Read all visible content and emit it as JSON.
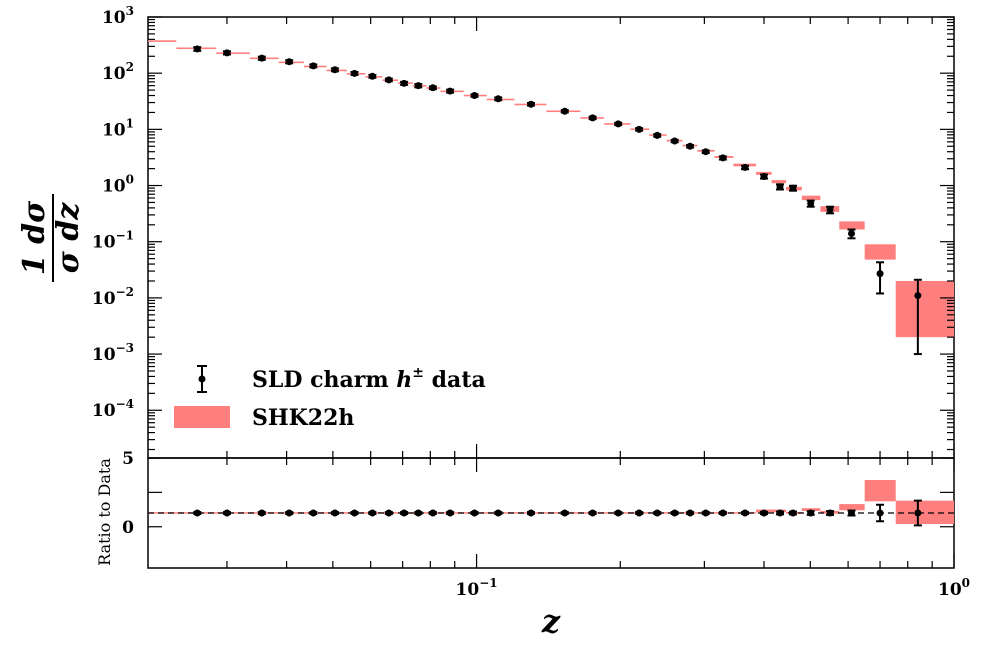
{
  "chart_data": {
    "type": "scatter",
    "xlabel": "z",
    "ylabel_top": {
      "numerator": "1 dσ",
      "denominator": "σ dz"
    },
    "ylabel_bottom": "Ratio to Data",
    "x_scale": "log",
    "xlim": [
      0.0205,
      1.0
    ],
    "x_tick_labels": [
      {
        "base": "10",
        "exp": "−1",
        "value": 0.1
      },
      {
        "base": "10",
        "exp": "0",
        "value": 1.0
      }
    ],
    "top_panel": {
      "y_scale": "log",
      "ylim_exp": [
        -4.85,
        3
      ],
      "y_tick_exponents": [
        -4,
        -3,
        -2,
        -1,
        0,
        1,
        2,
        3
      ],
      "y_tick_labels": [
        {
          "base": "10",
          "exp": "−4",
          "e": -4
        },
        {
          "base": "10",
          "exp": "−3",
          "e": -3
        },
        {
          "base": "10",
          "exp": "−2",
          "e": -2
        },
        {
          "base": "10",
          "exp": "−1",
          "e": -1
        },
        {
          "base": "10",
          "exp": "0",
          "e": 0
        },
        {
          "base": "10",
          "exp": "1",
          "e": 1
        },
        {
          "base": "10",
          "exp": "2",
          "e": 2
        },
        {
          "base": "10",
          "exp": "3",
          "e": 3
        }
      ],
      "data_series": {
        "name": "SLD charm h± data",
        "points": [
          {
            "x": 0.026,
            "y": 270,
            "ylo": 250,
            "yhi": 290
          },
          {
            "x": 0.03,
            "y": 230,
            "ylo": 215,
            "yhi": 245
          },
          {
            "x": 0.0355,
            "y": 185,
            "ylo": 173,
            "yhi": 197
          },
          {
            "x": 0.0405,
            "y": 160,
            "ylo": 150,
            "yhi": 170
          },
          {
            "x": 0.0455,
            "y": 135,
            "ylo": 127,
            "yhi": 143
          },
          {
            "x": 0.0505,
            "y": 115,
            "ylo": 108,
            "yhi": 122
          },
          {
            "x": 0.0555,
            "y": 99,
            "ylo": 93,
            "yhi": 105
          },
          {
            "x": 0.0605,
            "y": 88,
            "ylo": 83,
            "yhi": 93
          },
          {
            "x": 0.0655,
            "y": 76,
            "ylo": 72,
            "yhi": 80
          },
          {
            "x": 0.0705,
            "y": 66,
            "ylo": 62,
            "yhi": 70
          },
          {
            "x": 0.0755,
            "y": 60,
            "ylo": 56,
            "yhi": 64
          },
          {
            "x": 0.081,
            "y": 55,
            "ylo": 52,
            "yhi": 58
          },
          {
            "x": 0.088,
            "y": 48,
            "ylo": 45,
            "yhi": 51
          },
          {
            "x": 0.099,
            "y": 40,
            "ylo": 38,
            "yhi": 42
          },
          {
            "x": 0.111,
            "y": 35,
            "ylo": 33,
            "yhi": 37
          },
          {
            "x": 0.13,
            "y": 28,
            "ylo": 26.5,
            "yhi": 29.5
          },
          {
            "x": 0.153,
            "y": 21,
            "ylo": 20,
            "yhi": 22
          },
          {
            "x": 0.175,
            "y": 16,
            "ylo": 15.2,
            "yhi": 16.8
          },
          {
            "x": 0.198,
            "y": 12.5,
            "ylo": 11.9,
            "yhi": 13.1
          },
          {
            "x": 0.219,
            "y": 10,
            "ylo": 9.5,
            "yhi": 10.5
          },
          {
            "x": 0.239,
            "y": 7.8,
            "ylo": 7.4,
            "yhi": 8.2
          },
          {
            "x": 0.26,
            "y": 6.2,
            "ylo": 5.9,
            "yhi": 6.5
          },
          {
            "x": 0.28,
            "y": 5.0,
            "ylo": 4.75,
            "yhi": 5.25
          },
          {
            "x": 0.302,
            "y": 4.0,
            "ylo": 3.8,
            "yhi": 4.2
          },
          {
            "x": 0.328,
            "y": 3.1,
            "ylo": 2.9,
            "yhi": 3.3
          },
          {
            "x": 0.365,
            "y": 2.1,
            "ylo": 1.95,
            "yhi": 2.25
          },
          {
            "x": 0.4,
            "y": 1.45,
            "ylo": 1.33,
            "yhi": 1.57
          },
          {
            "x": 0.432,
            "y": 0.95,
            "ylo": 0.85,
            "yhi": 1.05
          },
          {
            "x": 0.46,
            "y": 0.9,
            "ylo": 0.81,
            "yhi": 0.99
          },
          {
            "x": 0.501,
            "y": 0.48,
            "ylo": 0.42,
            "yhi": 0.54
          },
          {
            "x": 0.55,
            "y": 0.37,
            "ylo": 0.32,
            "yhi": 0.42
          },
          {
            "x": 0.61,
            "y": 0.14,
            "ylo": 0.115,
            "yhi": 0.165
          },
          {
            "x": 0.7,
            "y": 0.027,
            "ylo": 0.012,
            "yhi": 0.043
          },
          {
            "x": 0.84,
            "y": 0.011,
            "ylo": 0.001,
            "yhi": 0.021
          }
        ]
      },
      "theory_series": {
        "name": "SHK22h",
        "color": "#ff7f7f",
        "bins": [
          {
            "xlo": 0.0205,
            "xhi": 0.0235,
            "ylo": 360,
            "yhi": 385
          },
          {
            "xlo": 0.0235,
            "xhi": 0.0285,
            "ylo": 270,
            "yhi": 285
          },
          {
            "xlo": 0.0285,
            "xhi": 0.0335,
            "ylo": 222,
            "yhi": 232
          },
          {
            "xlo": 0.0335,
            "xhi": 0.0385,
            "ylo": 180,
            "yhi": 188
          },
          {
            "xlo": 0.0385,
            "xhi": 0.0435,
            "ylo": 152,
            "yhi": 160
          },
          {
            "xlo": 0.0435,
            "xhi": 0.0485,
            "ylo": 128,
            "yhi": 135
          },
          {
            "xlo": 0.0485,
            "xhi": 0.0535,
            "ylo": 109,
            "yhi": 115
          },
          {
            "xlo": 0.0535,
            "xhi": 0.0585,
            "ylo": 95,
            "yhi": 100
          },
          {
            "xlo": 0.0585,
            "xhi": 0.0635,
            "ylo": 84,
            "yhi": 88
          },
          {
            "xlo": 0.0635,
            "xhi": 0.0685,
            "ylo": 73,
            "yhi": 77
          },
          {
            "xlo": 0.0685,
            "xhi": 0.0735,
            "ylo": 65,
            "yhi": 68
          },
          {
            "xlo": 0.0735,
            "xhi": 0.0785,
            "ylo": 58,
            "yhi": 61
          },
          {
            "xlo": 0.0785,
            "xhi": 0.084,
            "ylo": 53,
            "yhi": 56
          },
          {
            "xlo": 0.084,
            "xhi": 0.094,
            "ylo": 46,
            "yhi": 49
          },
          {
            "xlo": 0.094,
            "xhi": 0.105,
            "ylo": 39,
            "yhi": 41
          },
          {
            "xlo": 0.105,
            "xhi": 0.12,
            "ylo": 33,
            "yhi": 35
          },
          {
            "xlo": 0.12,
            "xhi": 0.14,
            "ylo": 27,
            "yhi": 28.5
          },
          {
            "xlo": 0.14,
            "xhi": 0.165,
            "ylo": 20.5,
            "yhi": 21.5
          },
          {
            "xlo": 0.165,
            "xhi": 0.185,
            "ylo": 15.6,
            "yhi": 16.4
          },
          {
            "xlo": 0.185,
            "xhi": 0.21,
            "ylo": 12.2,
            "yhi": 12.8
          },
          {
            "xlo": 0.21,
            "xhi": 0.23,
            "ylo": 9.8,
            "yhi": 10.3
          },
          {
            "xlo": 0.23,
            "xhi": 0.25,
            "ylo": 7.7,
            "yhi": 8.1
          },
          {
            "xlo": 0.25,
            "xhi": 0.27,
            "ylo": 6.1,
            "yhi": 6.5
          },
          {
            "xlo": 0.27,
            "xhi": 0.29,
            "ylo": 5.0,
            "yhi": 5.3
          },
          {
            "xlo": 0.29,
            "xhi": 0.315,
            "ylo": 4.0,
            "yhi": 4.3
          },
          {
            "xlo": 0.315,
            "xhi": 0.345,
            "ylo": 3.1,
            "yhi": 3.35
          },
          {
            "xlo": 0.345,
            "xhi": 0.385,
            "ylo": 2.2,
            "yhi": 2.45
          },
          {
            "xlo": 0.385,
            "xhi": 0.415,
            "ylo": 1.55,
            "yhi": 1.75
          },
          {
            "xlo": 0.415,
            "xhi": 0.445,
            "ylo": 1.1,
            "yhi": 1.25
          },
          {
            "xlo": 0.445,
            "xhi": 0.48,
            "ylo": 0.82,
            "yhi": 0.95
          },
          {
            "xlo": 0.48,
            "xhi": 0.525,
            "ylo": 0.55,
            "yhi": 0.66
          },
          {
            "xlo": 0.525,
            "xhi": 0.575,
            "ylo": 0.34,
            "yhi": 0.43
          },
          {
            "xlo": 0.575,
            "xhi": 0.65,
            "ylo": 0.165,
            "yhi": 0.23
          },
          {
            "xlo": 0.65,
            "xhi": 0.755,
            "ylo": 0.048,
            "yhi": 0.09
          },
          {
            "xlo": 0.755,
            "xhi": 1.0,
            "ylo": 0.002,
            "yhi": 0.02
          }
        ]
      }
    },
    "bottom_panel": {
      "ylim": [
        -3,
        5
      ],
      "y_ticks": [
        0,
        2.5,
        5
      ],
      "y_tick_labels": [
        "0",
        "",
        "5"
      ],
      "reference_line": 1,
      "ratio_points": [
        {
          "x": 0.026,
          "y": 1,
          "err": 0.07
        },
        {
          "x": 0.03,
          "y": 1,
          "err": 0.07
        },
        {
          "x": 0.0355,
          "y": 1,
          "err": 0.07
        },
        {
          "x": 0.0405,
          "y": 1,
          "err": 0.07
        },
        {
          "x": 0.0455,
          "y": 1,
          "err": 0.07
        },
        {
          "x": 0.0505,
          "y": 1,
          "err": 0.07
        },
        {
          "x": 0.0555,
          "y": 1,
          "err": 0.07
        },
        {
          "x": 0.0605,
          "y": 1,
          "err": 0.07
        },
        {
          "x": 0.0655,
          "y": 1,
          "err": 0.07
        },
        {
          "x": 0.0705,
          "y": 1,
          "err": 0.07
        },
        {
          "x": 0.0755,
          "y": 1,
          "err": 0.07
        },
        {
          "x": 0.081,
          "y": 1,
          "err": 0.07
        },
        {
          "x": 0.088,
          "y": 1,
          "err": 0.07
        },
        {
          "x": 0.099,
          "y": 1,
          "err": 0.07
        },
        {
          "x": 0.111,
          "y": 1,
          "err": 0.07
        },
        {
          "x": 0.13,
          "y": 1,
          "err": 0.07
        },
        {
          "x": 0.153,
          "y": 1,
          "err": 0.07
        },
        {
          "x": 0.175,
          "y": 1,
          "err": 0.07
        },
        {
          "x": 0.198,
          "y": 1,
          "err": 0.07
        },
        {
          "x": 0.219,
          "y": 1,
          "err": 0.07
        },
        {
          "x": 0.239,
          "y": 1,
          "err": 0.07
        },
        {
          "x": 0.26,
          "y": 1,
          "err": 0.07
        },
        {
          "x": 0.28,
          "y": 1,
          "err": 0.07
        },
        {
          "x": 0.302,
          "y": 1,
          "err": 0.07
        },
        {
          "x": 0.328,
          "y": 1,
          "err": 0.07
        },
        {
          "x": 0.365,
          "y": 1,
          "err": 0.07
        },
        {
          "x": 0.4,
          "y": 1,
          "err": 0.08
        },
        {
          "x": 0.432,
          "y": 1,
          "err": 0.1
        },
        {
          "x": 0.46,
          "y": 1,
          "err": 0.1
        },
        {
          "x": 0.501,
          "y": 1,
          "err": 0.13
        },
        {
          "x": 0.55,
          "y": 1,
          "err": 0.14
        },
        {
          "x": 0.61,
          "y": 1,
          "err": 0.18
        },
        {
          "x": 0.7,
          "y": 1,
          "err": 0.6
        },
        {
          "x": 0.84,
          "y": 1,
          "err": 0.9
        }
      ],
      "ratio_bands": [
        {
          "xlo": 0.0205,
          "xhi": 0.385,
          "ylo": 0.96,
          "yhi": 1.06
        },
        {
          "xlo": 0.385,
          "xhi": 0.445,
          "ylo": 1.05,
          "yhi": 1.25
        },
        {
          "xlo": 0.445,
          "xhi": 0.48,
          "ylo": 0.95,
          "yhi": 1.08
        },
        {
          "xlo": 0.48,
          "xhi": 0.525,
          "ylo": 1.15,
          "yhi": 1.35
        },
        {
          "xlo": 0.525,
          "xhi": 0.575,
          "ylo": 0.95,
          "yhi": 1.15
        },
        {
          "xlo": 0.575,
          "xhi": 0.65,
          "ylo": 1.2,
          "yhi": 1.65
        },
        {
          "xlo": 0.65,
          "xhi": 0.755,
          "ylo": 1.85,
          "yhi": 3.4
        },
        {
          "xlo": 0.755,
          "xhi": 1.0,
          "ylo": 0.2,
          "yhi": 1.9
        }
      ]
    },
    "legend": {
      "placement": "lower-left",
      "data_label_prefix": "SLD charm ",
      "data_label_symbol": "h",
      "data_label_superscript": "±",
      "data_label_suffix": " data",
      "theory_label": "SHK22h"
    }
  }
}
